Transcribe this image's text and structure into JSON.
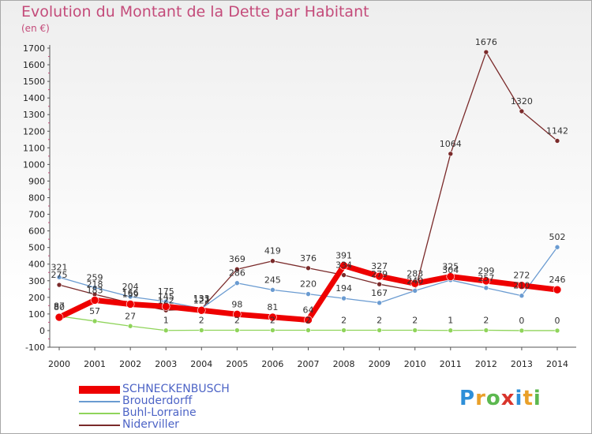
{
  "title": "Evolution du Montant de la Dette par Habitant",
  "unit": "(en €)",
  "logo": {
    "text": "Proxiti",
    "colors": [
      "#2e8fd8",
      "#e9a02a",
      "#5cb84f",
      "#d9342b",
      "#2e8fd8",
      "#e9a02a",
      "#5cb84f"
    ]
  },
  "chart_data": {
    "type": "line",
    "title": "Evolution du Montant de la Dette par Habitant",
    "ylabel": "(en €)",
    "xlabel": "",
    "x": [
      "2000",
      "2001",
      "2002",
      "2003",
      "2004",
      "2005",
      "2006",
      "2007",
      "2008",
      "2009",
      "2010",
      "2011",
      "2012",
      "2013",
      "2014"
    ],
    "ylim": [
      -100,
      1700
    ],
    "yticks": [
      -100,
      0,
      100,
      200,
      300,
      400,
      500,
      600,
      700,
      800,
      900,
      1000,
      1100,
      1200,
      1300,
      1400,
      1500,
      1600,
      1700
    ],
    "grid": false,
    "legend": "bottom-left",
    "series": [
      {
        "name": "SCHNECKENBUSCH",
        "color": "#ee0000",
        "width": 7,
        "marker": 5,
        "values": [
          80,
          183,
          159,
          145,
          122,
          98,
          81,
          64,
          391,
          327,
          283,
          325,
          299,
          272,
          246
        ],
        "labels": [
          "80",
          "183",
          "159",
          "145",
          "122",
          "98",
          "81",
          "64",
          "391",
          "327",
          "283",
          "325",
          "299",
          "272",
          "246"
        ]
      },
      {
        "name": "Brouderdorff",
        "color": "#6a9bd1",
        "width": 1.3,
        "marker": 3,
        "values": [
          321,
          259,
          204,
          175,
          133,
          286,
          245,
          220,
          194,
          167,
          240,
          304,
          257,
          210,
          502
        ],
        "labels": [
          "321",
          "259",
          "204",
          "175",
          "133",
          "286",
          "245",
          "220",
          "194",
          "167",
          "240",
          "304",
          "257",
          "210",
          "502"
        ]
      },
      {
        "name": "Buhl-Lorraine",
        "color": "#8fd45a",
        "width": 1.3,
        "marker": 3,
        "values": [
          87,
          57,
          27,
          1,
          2,
          2,
          2,
          2,
          2,
          2,
          2,
          1,
          2,
          0,
          0
        ],
        "labels": [
          "87",
          "57",
          "27",
          "1",
          "2",
          "2",
          "2",
          "2",
          "2",
          "2",
          "2",
          "1",
          "2",
          "0",
          "0"
        ]
      },
      {
        "name": "Niderviller",
        "color": "#7a2a2a",
        "width": 1.3,
        "marker": 3,
        "values": [
          275,
          218,
          166,
          122,
          131,
          369,
          419,
          376,
          334,
          279,
          240,
          1064,
          1676,
          1320,
          1142
        ],
        "labels": [
          "275",
          "218",
          "166",
          "122",
          "131",
          "369",
          "419",
          "376",
          "334",
          "279",
          "240",
          "1064",
          "1676",
          "1320",
          "1142"
        ]
      }
    ]
  }
}
